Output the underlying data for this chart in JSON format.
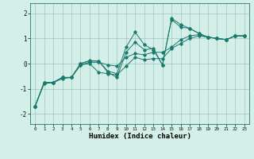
{
  "xlabel": "Humidex (Indice chaleur)",
  "bg_color": "#d4eee8",
  "line_color": "#1a7a6e",
  "grid_color": "#a0c8c0",
  "xlim": [
    -0.5,
    23.5
  ],
  "ylim": [
    -2.4,
    2.4
  ],
  "yticks": [
    -2,
    -1,
    0,
    1,
    2
  ],
  "xticks": [
    0,
    1,
    2,
    3,
    4,
    5,
    6,
    7,
    8,
    9,
    10,
    11,
    12,
    13,
    14,
    15,
    16,
    17,
    18,
    19,
    20,
    21,
    22,
    23
  ],
  "lines": [
    {
      "x": [
        0,
        1,
        2,
        3,
        4,
        5,
        6,
        7,
        8,
        9,
        10,
        11,
        12,
        13,
        14,
        15,
        16,
        17,
        18,
        19,
        20,
        21,
        22,
        23
      ],
      "y": [
        -1.7,
        -0.75,
        -0.75,
        -0.55,
        -0.55,
        0.0,
        0.1,
        0.1,
        -0.3,
        -0.4,
        0.65,
        1.25,
        0.75,
        0.55,
        -0.05,
        1.8,
        1.55,
        1.4,
        1.2,
        1.05,
        1.0,
        0.95,
        1.1,
        1.1
      ]
    },
    {
      "x": [
        0,
        1,
        2,
        3,
        4,
        5,
        6,
        7,
        8,
        9,
        10,
        11,
        12,
        13,
        14,
        15,
        16,
        17,
        18,
        19,
        20,
        21,
        22,
        23
      ],
      "y": [
        -1.7,
        -0.75,
        -0.75,
        -0.55,
        -0.55,
        0.0,
        0.12,
        0.1,
        -0.35,
        -0.55,
        0.45,
        0.85,
        0.55,
        0.6,
        -0.05,
        1.75,
        1.45,
        1.4,
        1.2,
        1.05,
        1.0,
        0.95,
        1.1,
        1.1
      ]
    },
    {
      "x": [
        0,
        1,
        2,
        3,
        4,
        5,
        6,
        7,
        8,
        9,
        10,
        11,
        12,
        13,
        14,
        15,
        16,
        17,
        18,
        19,
        20,
        21,
        22,
        23
      ],
      "y": [
        -1.7,
        -0.75,
        -0.75,
        -0.55,
        -0.55,
        -0.05,
        0.0,
        -0.35,
        -0.4,
        -0.45,
        -0.1,
        0.25,
        0.15,
        0.2,
        0.2,
        0.6,
        0.8,
        1.0,
        1.1,
        1.05,
        1.0,
        0.95,
        1.1,
        1.1
      ]
    },
    {
      "x": [
        0,
        1,
        2,
        3,
        4,
        5,
        6,
        7,
        8,
        9,
        10,
        11,
        12,
        13,
        14,
        15,
        16,
        17,
        18,
        19,
        20,
        21,
        22,
        23
      ],
      "y": [
        -1.7,
        -0.8,
        -0.75,
        -0.6,
        -0.55,
        -0.05,
        0.05,
        0.05,
        -0.05,
        -0.1,
        0.25,
        0.4,
        0.35,
        0.45,
        0.45,
        0.65,
        0.95,
        1.1,
        1.15,
        1.05,
        1.0,
        0.95,
        1.1,
        1.1
      ]
    }
  ]
}
